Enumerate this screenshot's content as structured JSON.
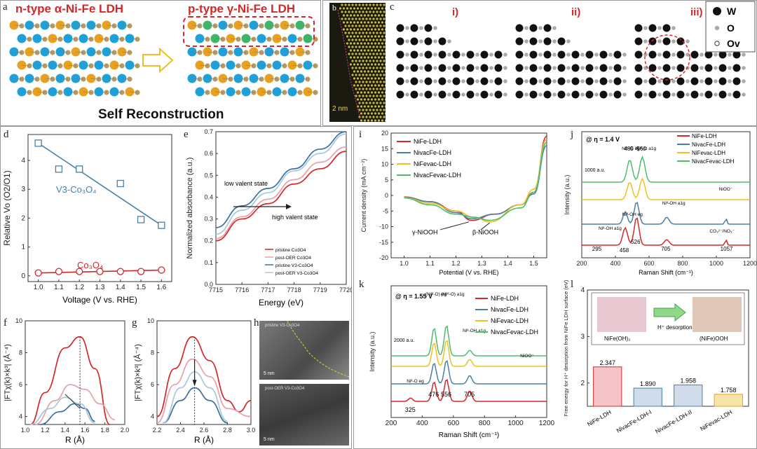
{
  "figure": {
    "panel_labels": {
      "a": "a",
      "b": "b",
      "c": "c",
      "d": "d",
      "e": "e",
      "f": "f",
      "g": "g",
      "h": "h",
      "i": "i",
      "j": "j",
      "k": "k",
      "l": "l"
    },
    "panel_a": {
      "left_title": "n-type α-Ni-Fe LDH",
      "right_title": "p-type γ-Ni-Fe LDH",
      "caption": "Self  Reconstruction"
    },
    "panel_b": {
      "scale": "2 nm"
    },
    "panel_c": {
      "steps": [
        "i)",
        "ii)",
        "iii)"
      ],
      "legend": [
        "W",
        "O",
        "Ov"
      ]
    },
    "panel_h": {
      "top_label": "pristine V3-Co3O4",
      "bottom_label": "post-OER V3-Co3O4",
      "top_scale": "5 nm",
      "bottom_scale": "5 nm"
    },
    "colors": {
      "red": "#d62728",
      "blue": "#3a6fa0",
      "steel": "#4a7fa8",
      "pink": "#e8a0a8",
      "lightblue": "#a8c8d8",
      "yellow": "#f0c020",
      "green": "#4cbf6a",
      "orange": "#e8a020"
    }
  },
  "chart_data": [
    {
      "id": "d",
      "type": "scatter",
      "xlabel": "Voltage (V vs. RHE)",
      "ylabel": "Relative Vo (O2/O1)",
      "xlim": [
        0.95,
        1.65
      ],
      "ylim": [
        -0.2,
        4.9
      ],
      "xticks": [
        "1.0",
        "1.1",
        "1.2",
        "1.3",
        "1.4",
        "1.5",
        "1.6"
      ],
      "yticks": [
        "0",
        "1",
        "2",
        "3",
        "4"
      ],
      "series": [
        {
          "name": "V3-Co3O4",
          "label": "V3-Co₃O₄",
          "marker": "square",
          "x": [
            1.0,
            1.1,
            1.2,
            1.4,
            1.5,
            1.6
          ],
          "y": [
            4.6,
            3.7,
            3.7,
            3.2,
            1.95,
            1.75
          ],
          "fit": [
            [
              1.0,
              4.6
            ],
            [
              1.6,
              1.75
            ]
          ]
        },
        {
          "name": "Co3O4",
          "label": "Co₃O₄",
          "marker": "circle",
          "x": [
            1.0,
            1.1,
            1.2,
            1.3,
            1.4,
            1.5,
            1.6
          ],
          "y": [
            0.1,
            0.15,
            0.15,
            0.15,
            0.15,
            0.15,
            0.2
          ],
          "fit": [
            [
              1.0,
              0.1
            ],
            [
              1.6,
              0.2
            ]
          ]
        }
      ]
    },
    {
      "id": "e",
      "type": "line",
      "xlabel": "Energy (eV)",
      "ylabel": "Normalized absorbance (a.u.)",
      "xlim": [
        7715,
        7720
      ],
      "ylim": [
        0.0,
        0.7
      ],
      "xticks": [
        "7715",
        "7716",
        "7717",
        "7718",
        "7719",
        "7720"
      ],
      "yticks": [
        "0.0",
        "0.1",
        "0.2",
        "0.3",
        "0.4",
        "0.5",
        "0.6",
        "0.7"
      ],
      "annotations": [
        "low valent state",
        "high valent state"
      ],
      "series": [
        {
          "name": "pristine Co3O4",
          "x": [
            7715,
            7716,
            7717,
            7718,
            7719,
            7720
          ],
          "y": [
            0.2,
            0.3,
            0.37,
            0.46,
            0.53,
            0.61
          ]
        },
        {
          "name": "post-OER Co3O4",
          "x": [
            7715,
            7716,
            7717,
            7718,
            7719,
            7720
          ],
          "y": [
            0.21,
            0.31,
            0.39,
            0.48,
            0.56,
            0.63
          ]
        },
        {
          "name": "pristine V3-Co3O4",
          "x": [
            7715,
            7716,
            7717,
            7718,
            7719,
            7720
          ],
          "y": [
            0.26,
            0.36,
            0.44,
            0.53,
            0.62,
            0.7
          ]
        },
        {
          "name": "post-OER V3-Co3O4",
          "x": [
            7715,
            7716,
            7717,
            7718,
            7719,
            7720
          ],
          "y": [
            0.23,
            0.34,
            0.42,
            0.52,
            0.6,
            0.69
          ]
        }
      ]
    },
    {
      "id": "f",
      "type": "line",
      "xlabel": "R (Å)",
      "ylabel": "|FTχ(k)×k³| (Å⁻⁴)",
      "xlim": [
        1.0,
        2.0
      ],
      "ylim": [
        3.5,
        10
      ],
      "xticks": [
        "1.0",
        "1.2",
        "1.4",
        "1.6",
        "1.8",
        "2.0"
      ],
      "yticks": [
        "4",
        "6",
        "8",
        "10"
      ],
      "series": [
        {
          "name": "pristine Co3O4",
          "x": [
            1.05,
            1.2,
            1.4,
            1.55,
            1.7,
            1.85
          ],
          "y": [
            3.5,
            5.5,
            8.3,
            9.0,
            7.0,
            3.5
          ]
        },
        {
          "name": "post-OER Co3O4",
          "x": [
            1.1,
            1.3,
            1.45,
            1.6,
            1.75,
            1.9
          ],
          "y": [
            3.5,
            5.0,
            6.0,
            5.7,
            4.8,
            3.8
          ]
        },
        {
          "name": "pristine V3-Co3O4",
          "x": [
            1.15,
            1.35,
            1.5,
            1.6,
            1.7
          ],
          "y": [
            3.5,
            4.3,
            4.8,
            4.5,
            3.7
          ]
        },
        {
          "name": "post-OER V3-Co3O4",
          "x": [
            1.05,
            1.25,
            1.4,
            1.55,
            1.7
          ],
          "y": [
            3.5,
            4.5,
            5.2,
            4.8,
            3.6
          ]
        }
      ]
    },
    {
      "id": "g",
      "type": "line",
      "xlabel": "R (Å)",
      "ylabel": "|FTχ(k)×k³| (Å⁻⁴)",
      "xlim": [
        2.2,
        3.0
      ],
      "ylim": [
        3.5,
        10
      ],
      "xticks": [
        "2.2",
        "2.4",
        "2.6",
        "2.8",
        "3.0"
      ],
      "yticks": [
        "4",
        "6",
        "8",
        "10"
      ],
      "series": [
        {
          "name": "pristine Co3O4",
          "x": [
            2.2,
            2.35,
            2.5,
            2.65,
            2.8,
            2.9,
            3.0
          ],
          "y": [
            4.0,
            7.0,
            9.0,
            7.5,
            5.0,
            4.3,
            5.0
          ]
        },
        {
          "name": "post-OER Co3O4",
          "x": [
            2.2,
            2.35,
            2.5,
            2.65,
            2.8,
            3.0
          ],
          "y": [
            3.6,
            6.0,
            7.6,
            6.5,
            4.5,
            4.0
          ]
        },
        {
          "name": "pristine V3-Co3O4",
          "x": [
            2.25,
            2.4,
            2.52,
            2.65,
            2.8
          ],
          "y": [
            3.6,
            5.0,
            5.8,
            5.0,
            3.6
          ]
        },
        {
          "name": "post-OER V3-Co3O4",
          "x": [
            2.25,
            2.4,
            2.52,
            2.65,
            2.8
          ],
          "y": [
            3.6,
            5.8,
            6.8,
            5.8,
            3.7
          ]
        }
      ]
    },
    {
      "id": "i",
      "type": "line",
      "xlabel": "Potential (V vs. RHE)",
      "ylabel": "Current density (mA cm⁻²)",
      "xlim": [
        0.95,
        1.55
      ],
      "ylim": [
        -20,
        20
      ],
      "xticks": [
        "1.0",
        "1.1",
        "1.2",
        "1.3",
        "1.4",
        "1.5"
      ],
      "yticks": [
        "-20",
        "-15",
        "-10",
        "-5",
        "0",
        "5",
        "10",
        "15",
        "20"
      ],
      "annotations": [
        "γ-NiOOH",
        "β-NiOOH"
      ],
      "series": [
        {
          "name": "NiFe-LDH",
          "x": [
            1.0,
            1.1,
            1.2,
            1.26,
            1.35,
            1.45,
            1.5,
            1.55
          ],
          "y": [
            -0.5,
            -2,
            -5,
            -8,
            -6,
            -3,
            1,
            19
          ]
        },
        {
          "name": "NivacFe-LDH",
          "x": [
            1.0,
            1.1,
            1.2,
            1.26,
            1.35,
            1.45,
            1.5,
            1.55
          ],
          "y": [
            -0.6,
            -2,
            -5.5,
            -7.5,
            -6,
            -3,
            0.5,
            16
          ]
        },
        {
          "name": "NiFevac-LDH",
          "x": [
            1.0,
            1.1,
            1.2,
            1.27,
            1.33,
            1.45,
            1.5,
            1.55
          ],
          "y": [
            -0.7,
            -2.5,
            -5,
            -7,
            -8.5,
            -3,
            2,
            18
          ]
        },
        {
          "name": "NivacFevac-LDH",
          "x": [
            1.0,
            1.1,
            1.2,
            1.27,
            1.33,
            1.45,
            1.5,
            1.55
          ],
          "y": [
            -0.8,
            -3,
            -6,
            -7,
            -8,
            -4,
            1,
            17
          ]
        }
      ]
    },
    {
      "id": "j",
      "type": "line",
      "title": "@ η = 1.4 V",
      "xlabel": "Raman Shift (cm⁻¹)",
      "ylabel": "Intensity (a.u.)",
      "xlim": [
        200,
        1200
      ],
      "xticks": [
        "200",
        "400",
        "600",
        "800",
        "1000",
        "1200"
      ],
      "scale_bar": "1000 a.u.",
      "peaks": [
        "295",
        "458",
        "526",
        "705",
        "1057",
        "485",
        "560"
      ],
      "peak_labels": [
        "Niᴵᴵᴵ-O eg",
        "Niᴵᴵᴵ-O a1g",
        "NiOO⁻",
        "Niᴵᴵ-OH a1g",
        "Niᴵᴵ-OH eg",
        "Niᴵᴵ-OH a1g",
        "CO₃²⁻/NO₃⁻"
      ],
      "series": [
        {
          "name": "NiFe-LDH"
        },
        {
          "name": "NivacFe-LDH"
        },
        {
          "name": "NiFevac-LDH"
        },
        {
          "name": "NivacFevac-LDH"
        }
      ]
    },
    {
      "id": "k",
      "type": "line",
      "title": "@ η = 1.55 V",
      "xlabel": "Raman Shift (cm⁻¹)",
      "ylabel": "Intensity (a.u.)",
      "xlim": [
        200,
        1200
      ],
      "xticks": [
        "200",
        "400",
        "600",
        "800",
        "1000",
        "1200"
      ],
      "scale_bar": "2000 a.u.",
      "peaks": [
        "325",
        "476",
        "556",
        "705"
      ],
      "peak_labels": [
        "(Niᴵᴵᴵ-O) eg",
        "(Niᴵᴵᴵ-O) a1g",
        "Niᴵᴵ-OH a1g",
        "NiOO⁻",
        "Niᴵᴵ-O eg"
      ],
      "series": [
        {
          "name": "NiFe-LDH"
        },
        {
          "name": "NivacFe-LDH"
        },
        {
          "name": "NiFevac-LDH"
        },
        {
          "name": "NivacFevac-LDH"
        }
      ]
    },
    {
      "id": "l",
      "type": "bar",
      "ylabel": "Free energy for H⁺ desorption from NiFe LDH surface (eV)",
      "ylim": [
        1.5,
        4
      ],
      "yticks": [
        "2",
        "3",
        "4"
      ],
      "categories": [
        "NiFe-LDH",
        "NivacFe-LDH-I",
        "NivacFe-LDH-II",
        "NiFevac-LDH"
      ],
      "values": [
        2.347,
        1.89,
        1.958,
        1.758
      ],
      "value_labels": [
        "2.347",
        "1.890",
        "1.958",
        "1.758"
      ],
      "inset": {
        "left": "NiFe(OH)₂",
        "right": "(NiFe)OOH",
        "arrow": "H⁺ desorption"
      }
    }
  ]
}
